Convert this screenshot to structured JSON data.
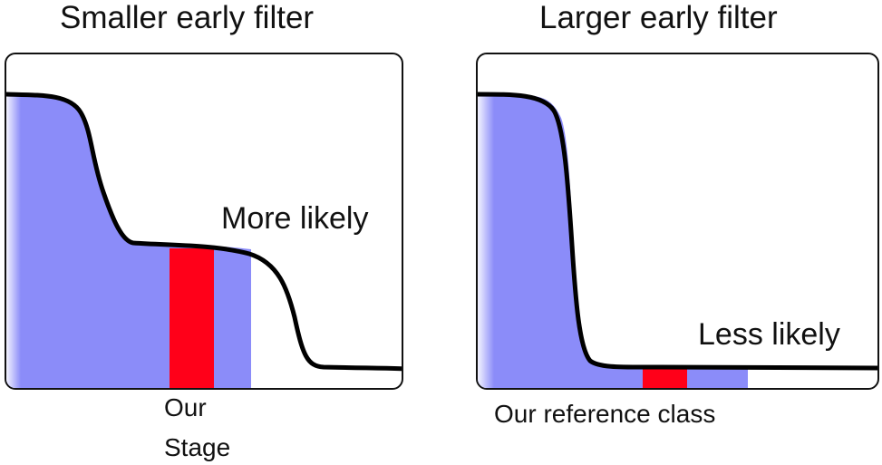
{
  "left_panel": {
    "title": "Smaller early filter",
    "annotation": "More likely",
    "marker_label_line1": "Our",
    "marker_label_line2": "Stage"
  },
  "right_panel": {
    "title": "Larger early filter",
    "annotation": "Less likely",
    "marker_label": "Our reference class"
  },
  "colors": {
    "shade": "#8b8cf9",
    "marker": "#ff0019",
    "curve": "#000000",
    "frame": "#111111"
  }
}
